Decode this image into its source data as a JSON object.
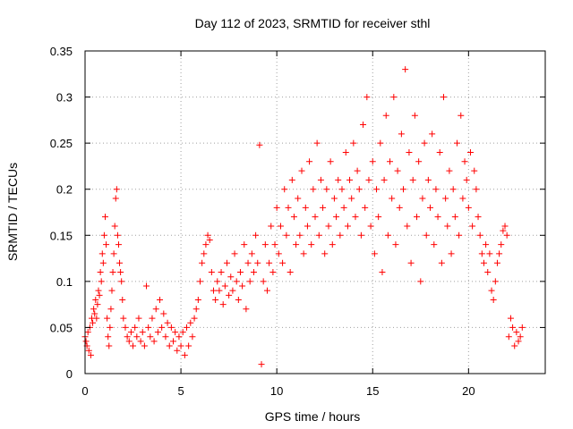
{
  "chart_data": {
    "type": "scatter",
    "title": "Day 112 of 2023, SRMTID for receiver sthl",
    "xlabel": "GPS time / hours",
    "ylabel": "SRMTID / TECUs",
    "xlim": [
      0,
      24
    ],
    "ylim": [
      0,
      0.35
    ],
    "grid": true,
    "xticks": [
      0,
      5,
      10,
      15,
      20
    ],
    "xtick_labels": [
      "0",
      "5",
      "10",
      "15",
      "20"
    ],
    "yticks": [
      0,
      0.05,
      0.1,
      0.15,
      0.2,
      0.25,
      0.3,
      0.35
    ],
    "ytick_labels": [
      "0",
      "0.05",
      "0.1",
      "0.15",
      "0.2",
      "0.25",
      "0.3",
      "0.35"
    ],
    "marker": "+",
    "color": "#ff0000",
    "series": [
      {
        "name": "SRMTID",
        "points": [
          [
            0.0,
            0.04
          ],
          [
            0.05,
            0.035
          ],
          [
            0.1,
            0.03
          ],
          [
            0.15,
            0.045
          ],
          [
            0.2,
            0.025
          ],
          [
            0.25,
            0.05
          ],
          [
            0.3,
            0.02
          ],
          [
            0.35,
            0.06
          ],
          [
            0.4,
            0.055
          ],
          [
            0.45,
            0.07
          ],
          [
            0.5,
            0.065
          ],
          [
            0.55,
            0.08
          ],
          [
            0.6,
            0.06
          ],
          [
            0.65,
            0.075
          ],
          [
            0.7,
            0.09
          ],
          [
            0.75,
            0.085
          ],
          [
            0.8,
            0.11
          ],
          [
            0.85,
            0.1
          ],
          [
            0.9,
            0.13
          ],
          [
            0.95,
            0.12
          ],
          [
            1.0,
            0.15
          ],
          [
            1.05,
            0.17
          ],
          [
            1.1,
            0.14
          ],
          [
            1.15,
            0.06
          ],
          [
            1.2,
            0.04
          ],
          [
            1.25,
            0.03
          ],
          [
            1.3,
            0.05
          ],
          [
            1.35,
            0.07
          ],
          [
            1.4,
            0.09
          ],
          [
            1.45,
            0.11
          ],
          [
            1.5,
            0.13
          ],
          [
            1.55,
            0.16
          ],
          [
            1.6,
            0.19
          ],
          [
            1.65,
            0.2
          ],
          [
            1.7,
            0.15
          ],
          [
            1.75,
            0.14
          ],
          [
            1.8,
            0.12
          ],
          [
            1.85,
            0.11
          ],
          [
            1.9,
            0.1
          ],
          [
            1.95,
            0.08
          ],
          [
            2.0,
            0.06
          ],
          [
            2.1,
            0.05
          ],
          [
            2.2,
            0.04
          ],
          [
            2.3,
            0.035
          ],
          [
            2.4,
            0.045
          ],
          [
            2.5,
            0.03
          ],
          [
            2.6,
            0.05
          ],
          [
            2.7,
            0.04
          ],
          [
            2.8,
            0.06
          ],
          [
            2.9,
            0.035
          ],
          [
            3.0,
            0.045
          ],
          [
            3.1,
            0.03
          ],
          [
            3.2,
            0.095
          ],
          [
            3.3,
            0.05
          ],
          [
            3.4,
            0.04
          ],
          [
            3.5,
            0.06
          ],
          [
            3.6,
            0.035
          ],
          [
            3.7,
            0.07
          ],
          [
            3.8,
            0.045
          ],
          [
            3.9,
            0.08
          ],
          [
            4.0,
            0.05
          ],
          [
            4.1,
            0.065
          ],
          [
            4.2,
            0.04
          ],
          [
            4.3,
            0.055
          ],
          [
            4.4,
            0.03
          ],
          [
            4.5,
            0.05
          ],
          [
            4.6,
            0.035
          ],
          [
            4.7,
            0.045
          ],
          [
            4.8,
            0.025
          ],
          [
            4.9,
            0.04
          ],
          [
            5.0,
            0.03
          ],
          [
            5.1,
            0.045
          ],
          [
            5.2,
            0.02
          ],
          [
            5.3,
            0.05
          ],
          [
            5.4,
            0.03
          ],
          [
            5.5,
            0.055
          ],
          [
            5.6,
            0.04
          ],
          [
            5.7,
            0.06
          ],
          [
            5.8,
            0.07
          ],
          [
            5.9,
            0.08
          ],
          [
            6.0,
            0.1
          ],
          [
            6.1,
            0.12
          ],
          [
            6.2,
            0.13
          ],
          [
            6.3,
            0.14
          ],
          [
            6.4,
            0.15
          ],
          [
            6.5,
            0.145
          ],
          [
            6.6,
            0.11
          ],
          [
            6.7,
            0.09
          ],
          [
            6.8,
            0.08
          ],
          [
            6.9,
            0.1
          ],
          [
            7.0,
            0.09
          ],
          [
            7.1,
            0.11
          ],
          [
            7.2,
            0.075
          ],
          [
            7.3,
            0.095
          ],
          [
            7.4,
            0.12
          ],
          [
            7.5,
            0.085
          ],
          [
            7.6,
            0.105
          ],
          [
            7.7,
            0.09
          ],
          [
            7.8,
            0.13
          ],
          [
            7.9,
            0.1
          ],
          [
            8.0,
            0.08
          ],
          [
            8.1,
            0.11
          ],
          [
            8.2,
            0.095
          ],
          [
            8.3,
            0.14
          ],
          [
            8.4,
            0.07
          ],
          [
            8.5,
            0.12
          ],
          [
            8.6,
            0.1
          ],
          [
            8.7,
            0.13
          ],
          [
            8.8,
            0.11
          ],
          [
            8.9,
            0.15
          ],
          [
            9.0,
            0.12
          ],
          [
            9.1,
            0.248
          ],
          [
            9.2,
            0.01
          ],
          [
            9.3,
            0.1
          ],
          [
            9.4,
            0.14
          ],
          [
            9.5,
            0.09
          ],
          [
            9.6,
            0.12
          ],
          [
            9.7,
            0.16
          ],
          [
            9.8,
            0.11
          ],
          [
            9.9,
            0.14
          ],
          [
            10.0,
            0.18
          ],
          [
            10.1,
            0.13
          ],
          [
            10.2,
            0.16
          ],
          [
            10.3,
            0.12
          ],
          [
            10.4,
            0.2
          ],
          [
            10.5,
            0.15
          ],
          [
            10.6,
            0.18
          ],
          [
            10.7,
            0.11
          ],
          [
            10.8,
            0.21
          ],
          [
            10.9,
            0.17
          ],
          [
            11.0,
            0.14
          ],
          [
            11.1,
            0.19
          ],
          [
            11.2,
            0.15
          ],
          [
            11.3,
            0.22
          ],
          [
            11.4,
            0.13
          ],
          [
            11.5,
            0.18
          ],
          [
            11.6,
            0.16
          ],
          [
            11.7,
            0.23
          ],
          [
            11.8,
            0.14
          ],
          [
            11.9,
            0.2
          ],
          [
            12.0,
            0.17
          ],
          [
            12.1,
            0.25
          ],
          [
            12.2,
            0.15
          ],
          [
            12.3,
            0.21
          ],
          [
            12.4,
            0.18
          ],
          [
            12.5,
            0.13
          ],
          [
            12.6,
            0.2
          ],
          [
            12.7,
            0.16
          ],
          [
            12.8,
            0.23
          ],
          [
            12.9,
            0.14
          ],
          [
            13.0,
            0.19
          ],
          [
            13.1,
            0.17
          ],
          [
            13.2,
            0.21
          ],
          [
            13.3,
            0.15
          ],
          [
            13.4,
            0.2
          ],
          [
            13.5,
            0.18
          ],
          [
            13.6,
            0.24
          ],
          [
            13.7,
            0.16
          ],
          [
            13.8,
            0.21
          ],
          [
            13.9,
            0.19
          ],
          [
            14.0,
            0.25
          ],
          [
            14.1,
            0.17
          ],
          [
            14.2,
            0.22
          ],
          [
            14.3,
            0.2
          ],
          [
            14.4,
            0.15
          ],
          [
            14.5,
            0.27
          ],
          [
            14.6,
            0.18
          ],
          [
            14.7,
            0.3
          ],
          [
            14.8,
            0.21
          ],
          [
            14.9,
            0.16
          ],
          [
            15.0,
            0.23
          ],
          [
            15.1,
            0.13
          ],
          [
            15.2,
            0.2
          ],
          [
            15.3,
            0.17
          ],
          [
            15.4,
            0.25
          ],
          [
            15.5,
            0.11
          ],
          [
            15.6,
            0.21
          ],
          [
            15.7,
            0.28
          ],
          [
            15.8,
            0.15
          ],
          [
            15.9,
            0.23
          ],
          [
            16.0,
            0.19
          ],
          [
            16.1,
            0.3
          ],
          [
            16.2,
            0.14
          ],
          [
            16.3,
            0.22
          ],
          [
            16.4,
            0.18
          ],
          [
            16.5,
            0.26
          ],
          [
            16.6,
            0.2
          ],
          [
            16.7,
            0.33
          ],
          [
            16.8,
            0.16
          ],
          [
            16.9,
            0.24
          ],
          [
            17.0,
            0.12
          ],
          [
            17.1,
            0.21
          ],
          [
            17.2,
            0.28
          ],
          [
            17.3,
            0.17
          ],
          [
            17.4,
            0.23
          ],
          [
            17.5,
            0.1
          ],
          [
            17.6,
            0.19
          ],
          [
            17.7,
            0.25
          ],
          [
            17.8,
            0.15
          ],
          [
            17.9,
            0.21
          ],
          [
            18.0,
            0.18
          ],
          [
            18.1,
            0.26
          ],
          [
            18.2,
            0.14
          ],
          [
            18.3,
            0.2
          ],
          [
            18.4,
            0.17
          ],
          [
            18.5,
            0.24
          ],
          [
            18.6,
            0.12
          ],
          [
            18.7,
            0.3
          ],
          [
            18.8,
            0.19
          ],
          [
            18.9,
            0.16
          ],
          [
            19.0,
            0.22
          ],
          [
            19.1,
            0.13
          ],
          [
            19.2,
            0.2
          ],
          [
            19.3,
            0.17
          ],
          [
            19.4,
            0.25
          ],
          [
            19.5,
            0.15
          ],
          [
            19.6,
            0.28
          ],
          [
            19.7,
            0.19
          ],
          [
            19.8,
            0.23
          ],
          [
            19.9,
            0.21
          ],
          [
            20.0,
            0.18
          ],
          [
            20.1,
            0.24
          ],
          [
            20.2,
            0.16
          ],
          [
            20.3,
            0.22
          ],
          [
            20.4,
            0.2
          ],
          [
            20.5,
            0.17
          ],
          [
            20.6,
            0.15
          ],
          [
            20.7,
            0.13
          ],
          [
            20.8,
            0.12
          ],
          [
            20.9,
            0.14
          ],
          [
            21.0,
            0.11
          ],
          [
            21.1,
            0.13
          ],
          [
            21.2,
            0.09
          ],
          [
            21.3,
            0.08
          ],
          [
            21.4,
            0.1
          ],
          [
            21.5,
            0.12
          ],
          [
            21.6,
            0.13
          ],
          [
            21.7,
            0.14
          ],
          [
            21.8,
            0.155
          ],
          [
            21.9,
            0.16
          ],
          [
            22.0,
            0.15
          ],
          [
            22.1,
            0.04
          ],
          [
            22.2,
            0.06
          ],
          [
            22.3,
            0.05
          ],
          [
            22.4,
            0.03
          ],
          [
            22.5,
            0.045
          ],
          [
            22.6,
            0.035
          ],
          [
            22.7,
            0.04
          ],
          [
            22.8,
            0.05
          ]
        ]
      }
    ]
  }
}
